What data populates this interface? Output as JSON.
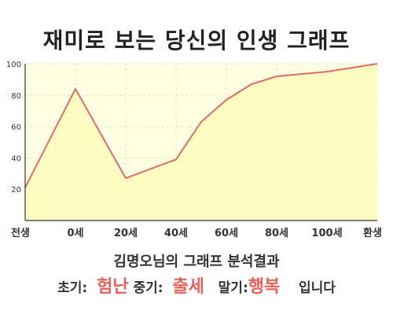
{
  "title": "재미로 보는 당신의 인생 그래프",
  "chart_data": {
    "type": "area",
    "categories": [
      "전생",
      "0세",
      "20세",
      "40세",
      "60세",
      "80세",
      "100세",
      "환생"
    ],
    "x": [
      -20,
      0,
      20,
      30,
      40,
      50,
      60,
      70,
      80,
      100,
      120
    ],
    "values": [
      21,
      84,
      27,
      33,
      39,
      63,
      77,
      87,
      92,
      95,
      100
    ],
    "xlim": [
      -20,
      120
    ],
    "ylim": [
      0,
      100
    ],
    "yticks": [
      20,
      40,
      60,
      80,
      100
    ],
    "grid": true,
    "colors": {
      "line": "#e06a6a",
      "fill": "#fffcc2",
      "plot_bg": "#ffffe4",
      "grid": "#e2e0b8"
    }
  },
  "analysis": {
    "heading": "김명오님의 그래프 분석결과",
    "early_label": "초기:",
    "early_value": "험난",
    "mid_label": "중기:",
    "mid_value": "출세",
    "late_label": "말기:",
    "late_value": "행복",
    "ending": "입니다"
  }
}
